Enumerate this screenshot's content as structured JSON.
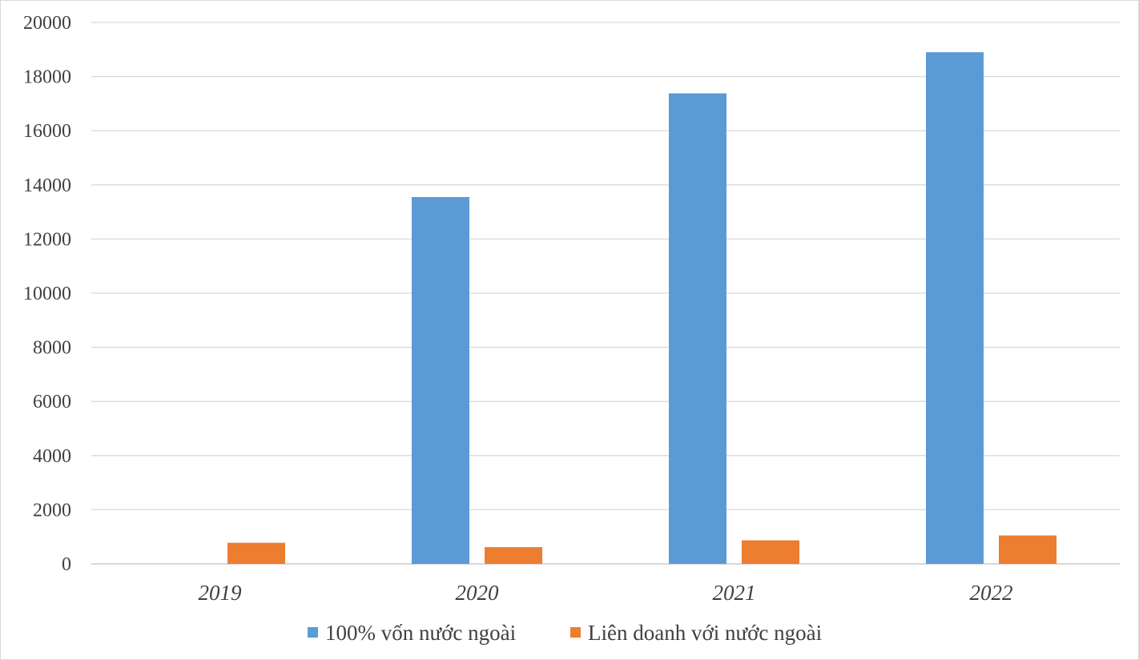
{
  "chart_data": {
    "type": "bar",
    "title": "",
    "xlabel": "",
    "ylabel": "",
    "categories": [
      "2019",
      "2020",
      "2021",
      "2022"
    ],
    "series": [
      {
        "name": "100% vốn nước ngoài",
        "color": "#5b9bd5",
        "values": [
          0,
          13550,
          17380,
          18900
        ]
      },
      {
        "name": "Liên doanh với nước ngoài",
        "color": "#ed7d31",
        "values": [
          780,
          620,
          870,
          1050
        ]
      }
    ],
    "ylim": [
      0,
      20000
    ],
    "yticks": [
      "0",
      "2000",
      "4000",
      "6000",
      "8000",
      "10000",
      "12000",
      "14000",
      "16000",
      "18000",
      "20000"
    ],
    "grid": true,
    "legend_position": "bottom"
  }
}
